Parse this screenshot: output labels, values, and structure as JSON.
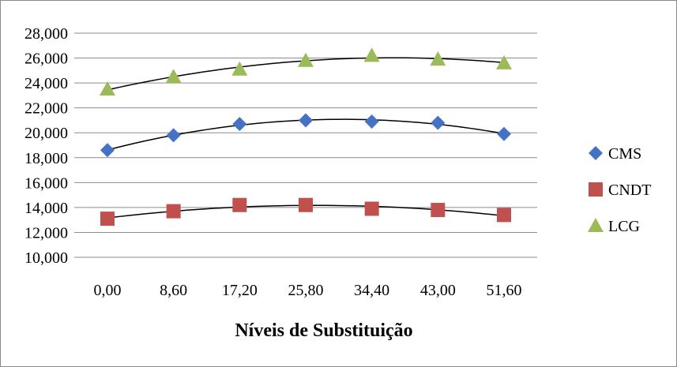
{
  "chart_data": {
    "type": "scatter",
    "title": "",
    "xlabel": "Níveis de Substituição",
    "ylabel": "",
    "x_tick_labels": [
      "0,00",
      "8,60",
      "17,20",
      "25,80",
      "34,40",
      "43,00",
      "51,60"
    ],
    "x": [
      0.0,
      8.6,
      17.2,
      25.8,
      34.4,
      43.0,
      51.6
    ],
    "y_tick_labels": [
      "10,000",
      "12,000",
      "14,000",
      "16,000",
      "18,000",
      "20,000",
      "22,000",
      "24,000",
      "26,000",
      "28,000"
    ],
    "ylim": [
      10,
      28
    ],
    "grid": "horizontal",
    "legend_position": "right",
    "trendline": "polynomial order 2",
    "series": [
      {
        "name": "CMS",
        "marker": "diamond",
        "color": "#4472C4",
        "values": [
          18.6,
          19.8,
          20.7,
          21.0,
          20.9,
          20.8,
          19.9
        ]
      },
      {
        "name": "CNDT",
        "marker": "square",
        "color": "#C0504D",
        "values": [
          13.1,
          13.7,
          14.2,
          14.2,
          13.9,
          13.8,
          13.4
        ]
      },
      {
        "name": "LCG",
        "marker": "triangle",
        "color": "#9BBB59",
        "values": [
          23.5,
          24.5,
          25.1,
          25.8,
          26.2,
          25.9,
          25.6
        ]
      }
    ]
  }
}
